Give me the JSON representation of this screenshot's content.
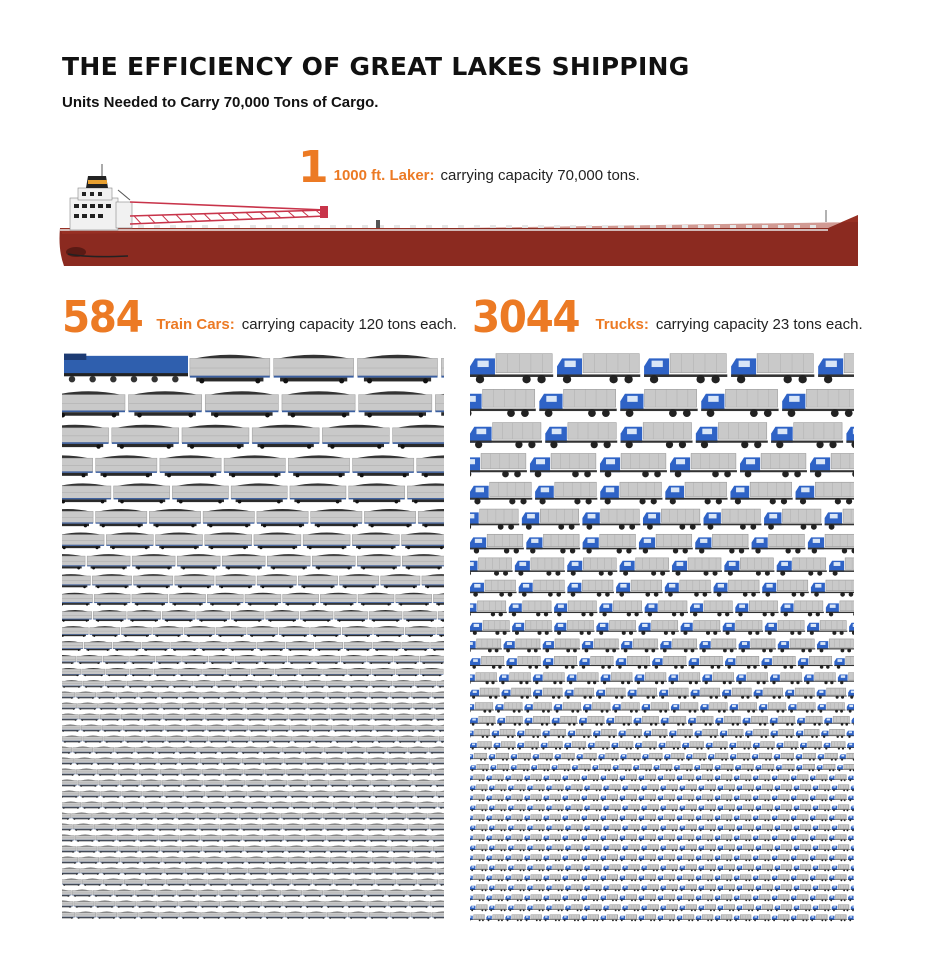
{
  "title": "THE EFFICIENCY OF GREAT LAKES SHIPPING",
  "subtitle": "Units Needed to Carry 70,000 Tons of Cargo.",
  "ship": {
    "count": "1",
    "label": "1000 ft. Laker:",
    "desc": "carrying capacity 70,000 tons."
  },
  "train": {
    "count": "584",
    "label": "Train Cars:",
    "desc": "carrying capacity 120 tons each."
  },
  "truck": {
    "count": "3044",
    "label": "Trucks:",
    "desc": "carrying capacity 23 tons each."
  },
  "colors": {
    "accent": "#ec7a24",
    "hull": "#8b2a20",
    "truck_cab": "#2f63c6",
    "locomotive": "#2f5fae",
    "cargo_gray": "#c9c9c9"
  }
}
